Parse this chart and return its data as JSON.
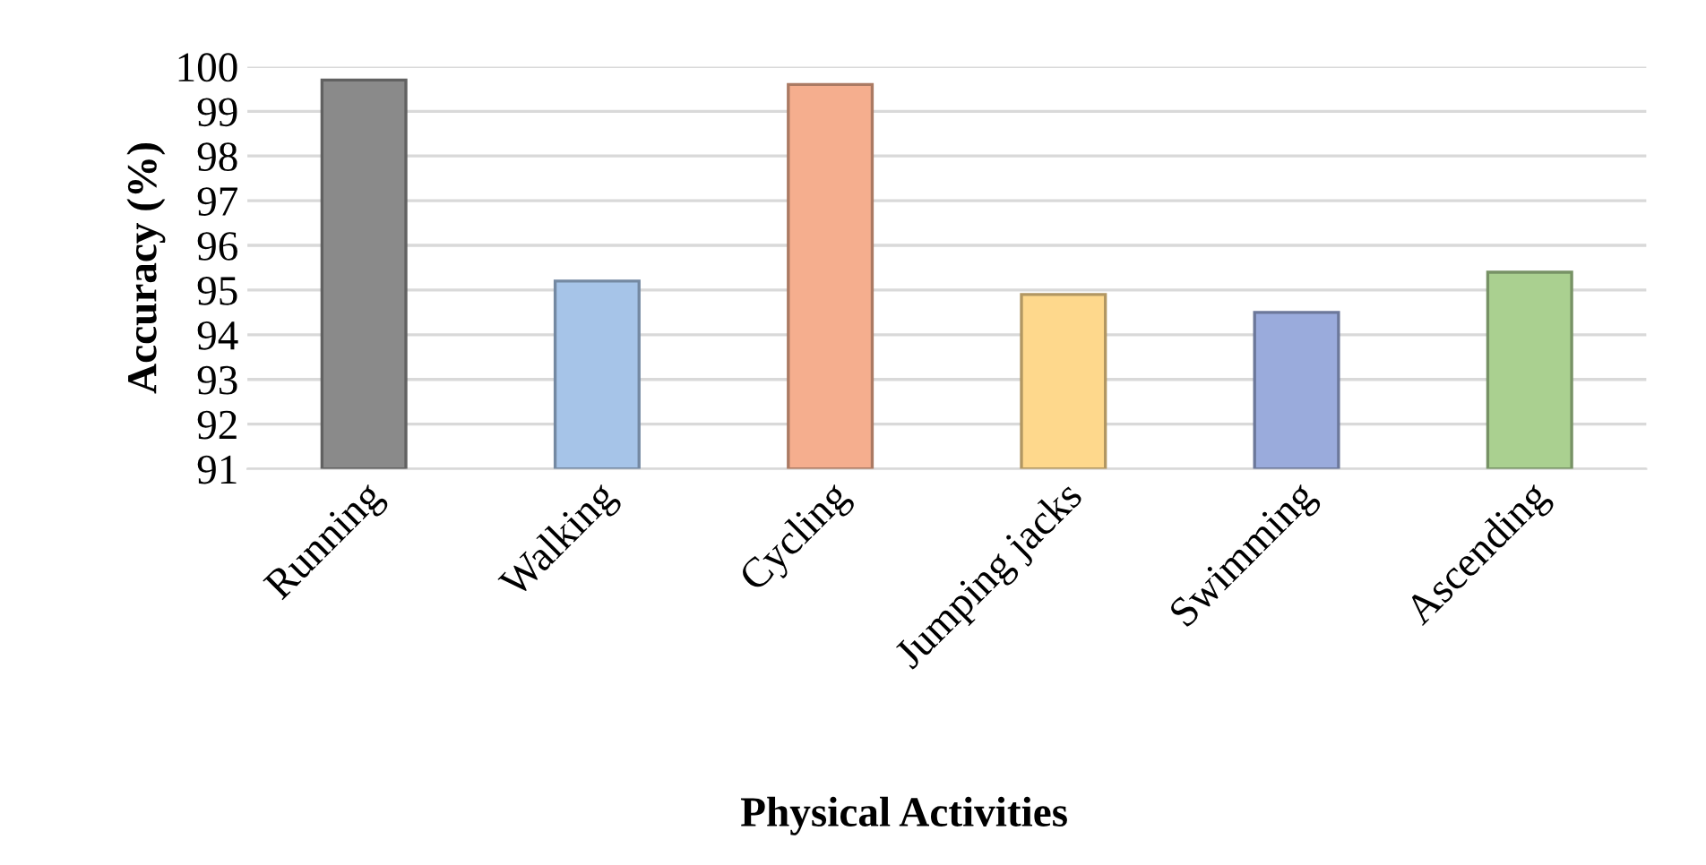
{
  "chart_data": {
    "type": "bar",
    "xlabel": "Physical Activities",
    "ylabel": "Accuracy (%)",
    "categories": [
      "Running",
      "Walking",
      "Cycling",
      "Jumping jacks",
      "Swimming",
      "Ascending"
    ],
    "values": [
      99.7,
      95.2,
      99.6,
      94.9,
      94.5,
      95.4
    ],
    "colors": [
      "#8a8a8a",
      "#a6c4e8",
      "#f5ae8e",
      "#fed88c",
      "#9aabdc",
      "#aad090"
    ],
    "ylim": [
      91,
      100
    ],
    "yticks": [
      91,
      92,
      93,
      94,
      95,
      96,
      97,
      98,
      99,
      100
    ],
    "grid": "y"
  }
}
